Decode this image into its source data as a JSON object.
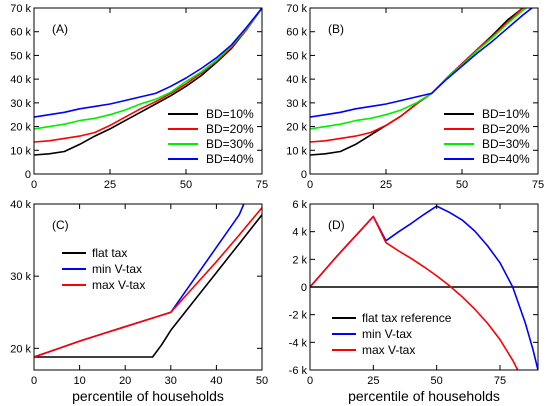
{
  "chart_data": [
    {
      "type": "line",
      "panel_label": "(A)",
      "xlabel": "",
      "xlim": [
        0,
        75
      ],
      "ylim": [
        0,
        70
      ],
      "xticks": [
        0,
        25,
        50,
        75
      ],
      "yticks": [
        0,
        10,
        20,
        30,
        40,
        50,
        60,
        70
      ],
      "ytick_labels": [
        "0",
        "10 k",
        "20 k",
        "30 k",
        "40 k",
        "50 k",
        "60 k",
        "70 k"
      ],
      "legend_position": "bottom-right",
      "series": [
        {
          "name": "BD=10%",
          "color": "#000000",
          "x": [
            0,
            5,
            10,
            15,
            20,
            25,
            30,
            35,
            40,
            45,
            50,
            55,
            60,
            65,
            70,
            75
          ],
          "y": [
            8,
            8.5,
            9.5,
            12.5,
            16,
            19,
            22.5,
            26,
            29.5,
            33,
            37,
            41.5,
            47,
            53,
            61,
            70
          ]
        },
        {
          "name": "BD=20%",
          "color": "#ff0000",
          "x": [
            0,
            5,
            10,
            15,
            20,
            25,
            30,
            35,
            40,
            45,
            50,
            55,
            60,
            65,
            70,
            75
          ],
          "y": [
            13.5,
            14,
            15,
            16,
            17.5,
            20.5,
            24,
            27.5,
            30.5,
            34,
            38,
            42.5,
            47.5,
            53.5,
            61,
            70
          ]
        },
        {
          "name": "BD=30%",
          "color": "#00ee00",
          "x": [
            0,
            5,
            10,
            15,
            20,
            25,
            30,
            35,
            40,
            45,
            50,
            55,
            60,
            65,
            70,
            75
          ],
          "y": [
            19,
            20,
            21,
            22.5,
            23.5,
            25,
            27,
            29.5,
            31.5,
            34.5,
            39,
            43,
            48,
            54,
            61.5,
            70
          ]
        },
        {
          "name": "BD=40%",
          "color": "#0000ff",
          "x": [
            0,
            5,
            10,
            15,
            20,
            25,
            30,
            35,
            40,
            45,
            50,
            55,
            60,
            65,
            70,
            75
          ],
          "y": [
            24,
            25,
            26,
            27.5,
            28.5,
            29.5,
            31,
            32.5,
            34,
            37,
            40.5,
            44.5,
            49,
            54.5,
            62,
            70
          ]
        }
      ]
    },
    {
      "type": "line",
      "panel_label": "(B)",
      "xlabel": "",
      "xlim": [
        0,
        75
      ],
      "ylim": [
        0,
        70
      ],
      "xticks": [
        0,
        25,
        50,
        75
      ],
      "yticks": [
        0,
        10,
        20,
        30,
        40,
        50,
        60,
        70
      ],
      "ytick_labels": [
        "0",
        "10 k",
        "20 k",
        "30 k",
        "40 k",
        "50 k",
        "60 k",
        "70 k"
      ],
      "legend_position": "bottom-right",
      "series": [
        {
          "name": "BD=10%",
          "color": "#000000",
          "x": [
            0,
            5,
            10,
            15,
            20,
            25,
            30,
            35,
            40,
            45,
            50,
            55,
            60,
            65,
            70,
            72
          ],
          "y": [
            8,
            8.5,
            9.5,
            12.5,
            16.5,
            20.5,
            24.5,
            29.5,
            34,
            40.5,
            46.5,
            52.5,
            58.5,
            65,
            70,
            72
          ]
        },
        {
          "name": "BD=20%",
          "color": "#ff0000",
          "x": [
            0,
            5,
            10,
            15,
            20,
            25,
            30,
            35,
            40,
            45,
            50,
            55,
            60,
            65,
            70,
            72
          ],
          "y": [
            13.5,
            14,
            15,
            16,
            17.5,
            20.5,
            24.5,
            29.5,
            34,
            40.5,
            46.5,
            52.5,
            58,
            64,
            70,
            72
          ]
        },
        {
          "name": "BD=30%",
          "color": "#00ee00",
          "x": [
            0,
            5,
            10,
            15,
            20,
            25,
            30,
            35,
            40,
            45,
            50,
            55,
            60,
            65,
            70,
            73
          ],
          "y": [
            19,
            20,
            21,
            22.5,
            23.5,
            25,
            27,
            30,
            34,
            40.5,
            46,
            52,
            57.5,
            63.5,
            69,
            72
          ]
        },
        {
          "name": "BD=40%",
          "color": "#0000ff",
          "x": [
            0,
            5,
            10,
            15,
            20,
            25,
            30,
            35,
            40,
            45,
            50,
            55,
            60,
            65,
            70,
            74
          ],
          "y": [
            24,
            25,
            26,
            27.5,
            28.5,
            29.5,
            31,
            32.5,
            34,
            40,
            45.5,
            51,
            56,
            61.5,
            67,
            71
          ]
        }
      ]
    },
    {
      "type": "line",
      "panel_label": "(C)",
      "xlabel": "percentile of households",
      "xlim": [
        0,
        50
      ],
      "ylim": [
        17,
        40
      ],
      "xticks": [
        0,
        10,
        20,
        30,
        40,
        50
      ],
      "yticks": [
        20,
        30,
        40
      ],
      "ytick_labels": [
        "20 k",
        "30 k",
        "40 k"
      ],
      "legend_position": "center-left",
      "series": [
        {
          "name": "flat tax",
          "color": "#000000",
          "x": [
            0,
            5,
            10,
            15,
            20,
            25,
            26,
            28,
            30,
            35,
            40,
            45,
            50
          ],
          "y": [
            18.8,
            18.8,
            18.8,
            18.8,
            18.8,
            18.8,
            18.8,
            20.5,
            22.5,
            26.5,
            30.5,
            34.5,
            38.5
          ]
        },
        {
          "name": "min V-tax",
          "color": "#0000ff",
          "x": [
            0,
            5,
            10,
            15,
            20,
            25,
            29,
            30,
            35,
            40,
            45,
            46
          ],
          "y": [
            18.8,
            19.9,
            21,
            22,
            23,
            24,
            24.8,
            25,
            29.5,
            34,
            38.5,
            40
          ]
        },
        {
          "name": "max V-tax",
          "color": "#ff0000",
          "x": [
            0,
            5,
            10,
            15,
            20,
            25,
            29,
            30,
            35,
            40,
            45,
            50
          ],
          "y": [
            18.8,
            19.9,
            21,
            22,
            23,
            24,
            24.8,
            25,
            28.5,
            32,
            35.7,
            39.5
          ]
        }
      ]
    },
    {
      "type": "line",
      "panel_label": "(D)",
      "xlabel": "percentile of households",
      "xlim": [
        0,
        90
      ],
      "ylim": [
        -6,
        6
      ],
      "xticks": [
        0,
        25,
        50,
        75
      ],
      "yticks": [
        -6,
        -4,
        -2,
        0,
        2,
        4,
        6
      ],
      "ytick_labels": [
        "-6 k",
        "-4 k",
        "-2 k",
        "0",
        "2 k",
        "4 k",
        "6 k"
      ],
      "legend_position": "bottom-left",
      "series": [
        {
          "name": "flat tax reference",
          "color": "#000000",
          "x": [
            0,
            90
          ],
          "y": [
            0,
            0
          ]
        },
        {
          "name": "min V-tax",
          "color": "#0000ff",
          "x": [
            0,
            5,
            10,
            15,
            20,
            25,
            30,
            35,
            40,
            45,
            50,
            55,
            60,
            65,
            70,
            75,
            80,
            85,
            88,
            90
          ],
          "y": [
            0,
            1.05,
            2.1,
            3.1,
            4.1,
            5.1,
            3.35,
            4,
            4.6,
            5.25,
            5.85,
            5.4,
            4.85,
            4.05,
            3,
            1.75,
            0,
            -2.6,
            -4.5,
            -6
          ]
        },
        {
          "name": "max V-tax",
          "color": "#ff0000",
          "x": [
            0,
            5,
            10,
            15,
            20,
            25,
            30,
            35,
            40,
            45,
            50,
            55,
            60,
            65,
            70,
            75,
            80,
            82
          ],
          "y": [
            0,
            1.05,
            2.1,
            3.1,
            4.1,
            5.1,
            3.2,
            2.6,
            2.05,
            1.45,
            0.8,
            0.1,
            -0.7,
            -1.6,
            -2.6,
            -3.8,
            -5.3,
            -6
          ]
        }
      ]
    }
  ]
}
